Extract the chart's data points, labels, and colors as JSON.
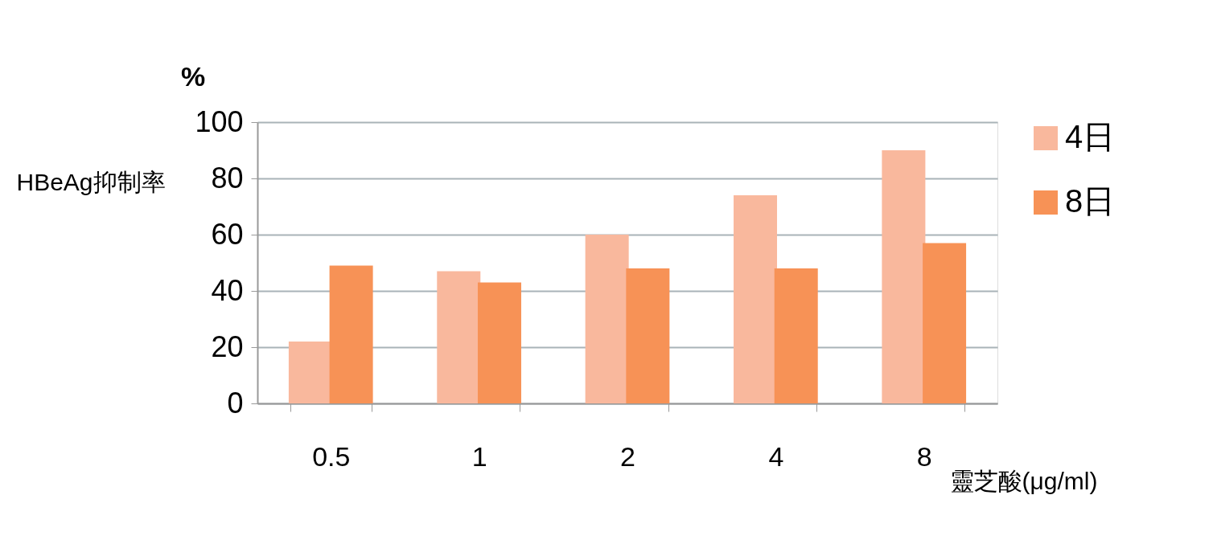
{
  "chart_data": {
    "type": "bar",
    "ylabel": "HBeAg抑制率",
    "xlabel": "靈芝酸(μg/ml)",
    "annotations": [
      "%"
    ],
    "categories": [
      "0.5",
      "1",
      "2",
      "4",
      "8"
    ],
    "series": [
      {
        "name": "4日",
        "color": "#f9b89d",
        "values": [
          22,
          47,
          60,
          74,
          90
        ]
      },
      {
        "name": "8日",
        "color": "#f79256",
        "values": [
          49,
          43,
          48,
          48,
          57
        ]
      }
    ],
    "ylim": [
      0,
      100
    ],
    "yticks": [
      0,
      20,
      40,
      60,
      80,
      100
    ],
    "grid": "y",
    "legend": "right"
  }
}
